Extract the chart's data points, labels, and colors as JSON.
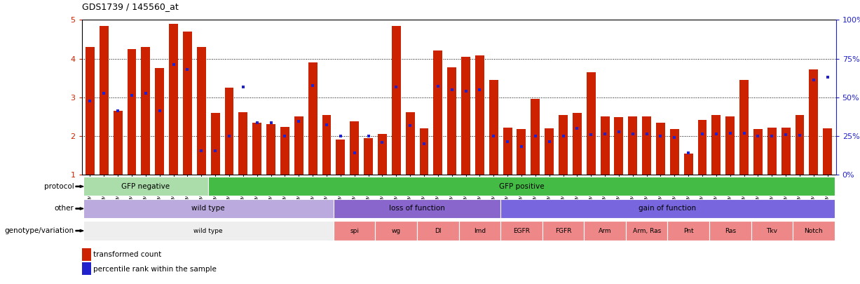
{
  "title": "GDS1739 / 145560_at",
  "samples": [
    "GSM88220",
    "GSM88221",
    "GSM88222",
    "GSM88244",
    "GSM88245",
    "GSM88246",
    "GSM88259",
    "GSM88260",
    "GSM88261",
    "GSM88223",
    "GSM88224",
    "GSM88225",
    "GSM88247",
    "GSM88248",
    "GSM88249",
    "GSM88262",
    "GSM88263",
    "GSM88264",
    "GSM88217",
    "GSM88218",
    "GSM88219",
    "GSM88241",
    "GSM88242",
    "GSM88243",
    "GSM88250",
    "GSM88251",
    "GSM88252",
    "GSM88253",
    "GSM88254",
    "GSM88255",
    "GSM88211",
    "GSM88212",
    "GSM88213",
    "GSM88214",
    "GSM88215",
    "GSM88216",
    "GSM88226",
    "GSM88227",
    "GSM88228",
    "GSM88229",
    "GSM88230",
    "GSM88231",
    "GSM88232",
    "GSM88233",
    "GSM88234",
    "GSM88235",
    "GSM88236",
    "GSM88237",
    "GSM88238",
    "GSM88239",
    "GSM88240",
    "GSM88256",
    "GSM88257",
    "GSM88258"
  ],
  "red_values": [
    4.3,
    4.85,
    2.65,
    4.25,
    4.3,
    3.75,
    4.9,
    4.7,
    4.3,
    2.6,
    3.25,
    2.62,
    2.35,
    2.3,
    2.23,
    2.5,
    3.9,
    2.55,
    1.9,
    2.37,
    1.95,
    2.05,
    4.85,
    2.62,
    2.2,
    4.2,
    3.78,
    4.05,
    4.08,
    3.45,
    2.22,
    2.18,
    2.95,
    2.2,
    2.55,
    2.6,
    3.65,
    2.5,
    2.48,
    2.5,
    2.5,
    2.35,
    2.18,
    1.55,
    2.42,
    2.55,
    2.5,
    3.45,
    2.18,
    2.22,
    2.22,
    2.55,
    3.72,
    2.2
  ],
  "blue_values": [
    2.9,
    3.1,
    2.65,
    3.05,
    3.1,
    2.65,
    3.85,
    3.72,
    1.62,
    1.62,
    2.0,
    3.27,
    2.35,
    2.35,
    2.0,
    2.37,
    3.3,
    2.28,
    2.0,
    1.57,
    2.0,
    1.83,
    3.27,
    2.27,
    1.8,
    3.28,
    3.2,
    3.15,
    3.2,
    2.0,
    1.85,
    1.72,
    2.0,
    1.85,
    2.0,
    2.2,
    2.03,
    2.05,
    2.1,
    2.05,
    2.05,
    2.0,
    1.97,
    1.56,
    2.05,
    2.05,
    2.07,
    2.07,
    2.0,
    2.0,
    2.03,
    2.02,
    3.45,
    3.52
  ],
  "protocol_groups": [
    {
      "label": "GFP negative",
      "start": 0,
      "end": 8,
      "color": "#aaddaa"
    },
    {
      "label": "GFP positive",
      "start": 9,
      "end": 53,
      "color": "#44bb44"
    }
  ],
  "other_groups": [
    {
      "label": "wild type",
      "start": 0,
      "end": 17,
      "color": "#bbaadd"
    },
    {
      "label": "loss of function",
      "start": 18,
      "end": 29,
      "color": "#8866cc"
    },
    {
      "label": "gain of function",
      "start": 30,
      "end": 53,
      "color": "#7766dd"
    }
  ],
  "genotype_groups": [
    {
      "label": "wild type",
      "start": 0,
      "end": 17,
      "color": "#eeeeee"
    },
    {
      "label": "spi",
      "start": 18,
      "end": 20,
      "color": "#ee8888"
    },
    {
      "label": "wg",
      "start": 21,
      "end": 23,
      "color": "#ee8888"
    },
    {
      "label": "Dl",
      "start": 24,
      "end": 26,
      "color": "#ee8888"
    },
    {
      "label": "Imd",
      "start": 27,
      "end": 29,
      "color": "#ee8888"
    },
    {
      "label": "EGFR",
      "start": 30,
      "end": 32,
      "color": "#ee8888"
    },
    {
      "label": "FGFR",
      "start": 33,
      "end": 35,
      "color": "#ee8888"
    },
    {
      "label": "Arm",
      "start": 36,
      "end": 38,
      "color": "#ee8888"
    },
    {
      "label": "Arm, Ras",
      "start": 39,
      "end": 41,
      "color": "#ee8888"
    },
    {
      "label": "Pnt",
      "start": 42,
      "end": 44,
      "color": "#ee8888"
    },
    {
      "label": "Ras",
      "start": 45,
      "end": 47,
      "color": "#ee8888"
    },
    {
      "label": "Tkv",
      "start": 48,
      "end": 50,
      "color": "#ee8888"
    },
    {
      "label": "Notch",
      "start": 51,
      "end": 53,
      "color": "#ee8888"
    }
  ],
  "ylim": [
    1,
    5
  ],
  "yticks_left": [
    1,
    2,
    3,
    4,
    5
  ],
  "yticks_right": [
    0,
    25,
    50,
    75,
    100
  ],
  "bar_color": "#cc2200",
  "marker_color": "#2222cc",
  "row_labels": [
    "protocol",
    "other",
    "genotype/variation"
  ],
  "legend_items": [
    "transformed count",
    "percentile rank within the sample"
  ]
}
